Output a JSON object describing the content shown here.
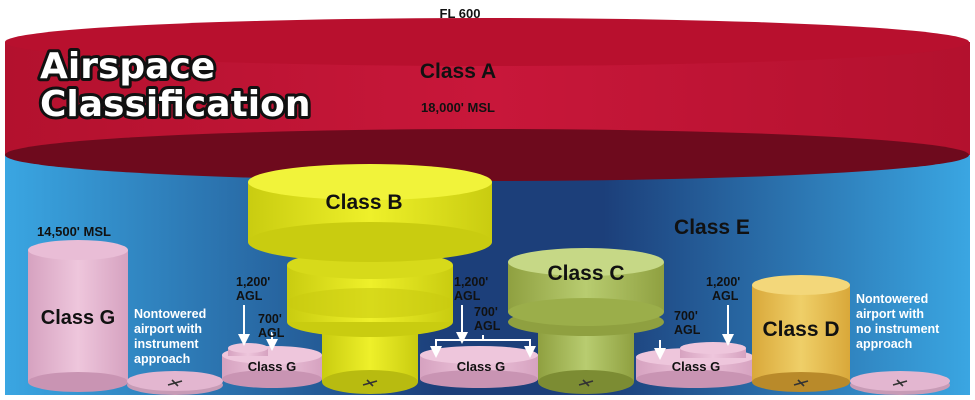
{
  "title_line1": "Airspace",
  "title_line2": "Classification",
  "top_limit": "FL 600",
  "class_a": {
    "label": "Class A",
    "floor": "18,000' MSL"
  },
  "class_b": {
    "label": "Class B"
  },
  "class_c": {
    "label": "Class C"
  },
  "class_d": {
    "label": "Class D"
  },
  "class_e": {
    "label": "Class E"
  },
  "class_g_tall": {
    "label": "Class G",
    "top": "14,500' MSL"
  },
  "class_g_labels": [
    "Class G",
    "Class G",
    "Class G"
  ],
  "airport_instrument": [
    "Nontowered",
    "airport with",
    "instrument",
    "approach"
  ],
  "airport_no_instrument": [
    "Nontowered",
    "airport with",
    "no instrument",
    "approach"
  ],
  "agl_1200": [
    "1,200'",
    "AGL"
  ],
  "agl_700": [
    "700'",
    "AGL"
  ],
  "colors": {
    "class_a": "#b3112e",
    "class_e_light": "#3aa6e2",
    "class_e_dark": "#1c3f7a",
    "class_b": "#e7ea1c",
    "class_c": "#b3c76a",
    "class_d": "#e7c35a",
    "class_g": "#e3b6d0"
  }
}
